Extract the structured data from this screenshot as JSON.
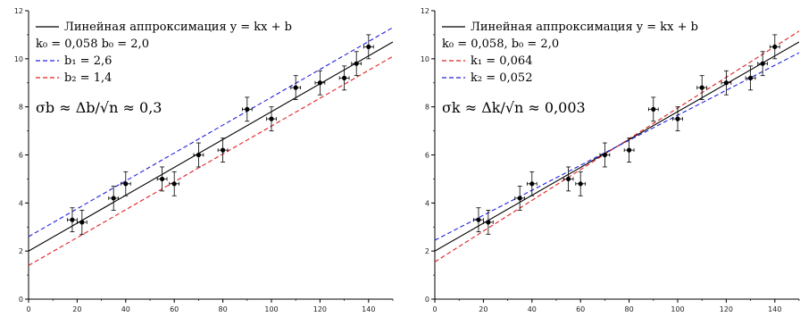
{
  "chart_data": [
    {
      "type": "scatter",
      "xlim": [
        0,
        150
      ],
      "ylim": [
        0,
        12
      ],
      "x_ticks": [
        "0",
        "20",
        "40",
        "60",
        "80",
        "100",
        "120",
        "140"
      ],
      "y_ticks": [
        "0",
        "2",
        "4",
        "6",
        "8",
        "10",
        "12"
      ],
      "points": {
        "x": [
          18,
          22,
          35,
          40,
          55,
          60,
          70,
          80,
          90,
          100,
          110,
          120,
          130,
          135,
          140
        ],
        "y": [
          3.3,
          3.2,
          4.2,
          4.8,
          5.0,
          4.8,
          6.0,
          6.2,
          7.9,
          7.5,
          8.8,
          9.0,
          9.2,
          9.8,
          10.5
        ],
        "xerr": 2,
        "yerr": 0.5
      },
      "legend": [
        {
          "label": "Линейная аппроксимация y = kx + b",
          "style": "solid",
          "color": "#000000"
        },
        {
          "label": "k₀ = 0,058 b₀ = 2,0",
          "style": "none"
        },
        {
          "label": "b₁ = 2,6",
          "style": "dashed",
          "color": "#2020e0"
        },
        {
          "label": "b₂ = 1,4",
          "style": "dashed",
          "color": "#e02020"
        }
      ],
      "annotation": "σb ≈ Δb/√n ≈ 0,3",
      "lines": [
        {
          "k": 0.058,
          "b": 2.0,
          "style": "solid",
          "color": "#000000"
        },
        {
          "k": 0.058,
          "b": 2.6,
          "style": "dashed",
          "color": "#2020e0"
        },
        {
          "k": 0.058,
          "b": 1.4,
          "style": "dashed",
          "color": "#e02020"
        }
      ]
    },
    {
      "type": "scatter",
      "xlim": [
        0,
        150
      ],
      "ylim": [
        0,
        12
      ],
      "x_ticks": [
        "0",
        "20",
        "40",
        "60",
        "80",
        "100",
        "120",
        "140"
      ],
      "y_ticks": [
        "0",
        "2",
        "4",
        "6",
        "8",
        "10",
        "12"
      ],
      "points": {
        "x": [
          18,
          22,
          35,
          40,
          55,
          60,
          70,
          80,
          90,
          100,
          110,
          120,
          130,
          135,
          140
        ],
        "y": [
          3.3,
          3.2,
          4.2,
          4.8,
          5.0,
          4.8,
          6.0,
          6.2,
          7.9,
          7.5,
          8.8,
          9.0,
          9.2,
          9.8,
          10.5
        ],
        "xerr": 2,
        "yerr": 0.5
      },
      "legend": [
        {
          "label": "Линейная аппроксимация y = kx + b",
          "style": "solid",
          "color": "#000000"
        },
        {
          "label": "k₀ = 0,058, b₀ = 2,0",
          "style": "none"
        },
        {
          "label": "k₁ = 0,064",
          "style": "dashed",
          "color": "#e02020"
        },
        {
          "label": "k₂ = 0,052",
          "style": "dashed",
          "color": "#2020e0"
        }
      ],
      "annotation": "σk ≈ Δk/√n ≈ 0,003",
      "lines": [
        {
          "k": 0.058,
          "b": 2.0,
          "style": "solid",
          "color": "#000000"
        },
        {
          "k": 0.064,
          "b": 1.55,
          "style": "dashed",
          "color": "#e02020"
        },
        {
          "k": 0.052,
          "b": 2.45,
          "style": "dashed",
          "color": "#2020e0"
        }
      ]
    }
  ]
}
